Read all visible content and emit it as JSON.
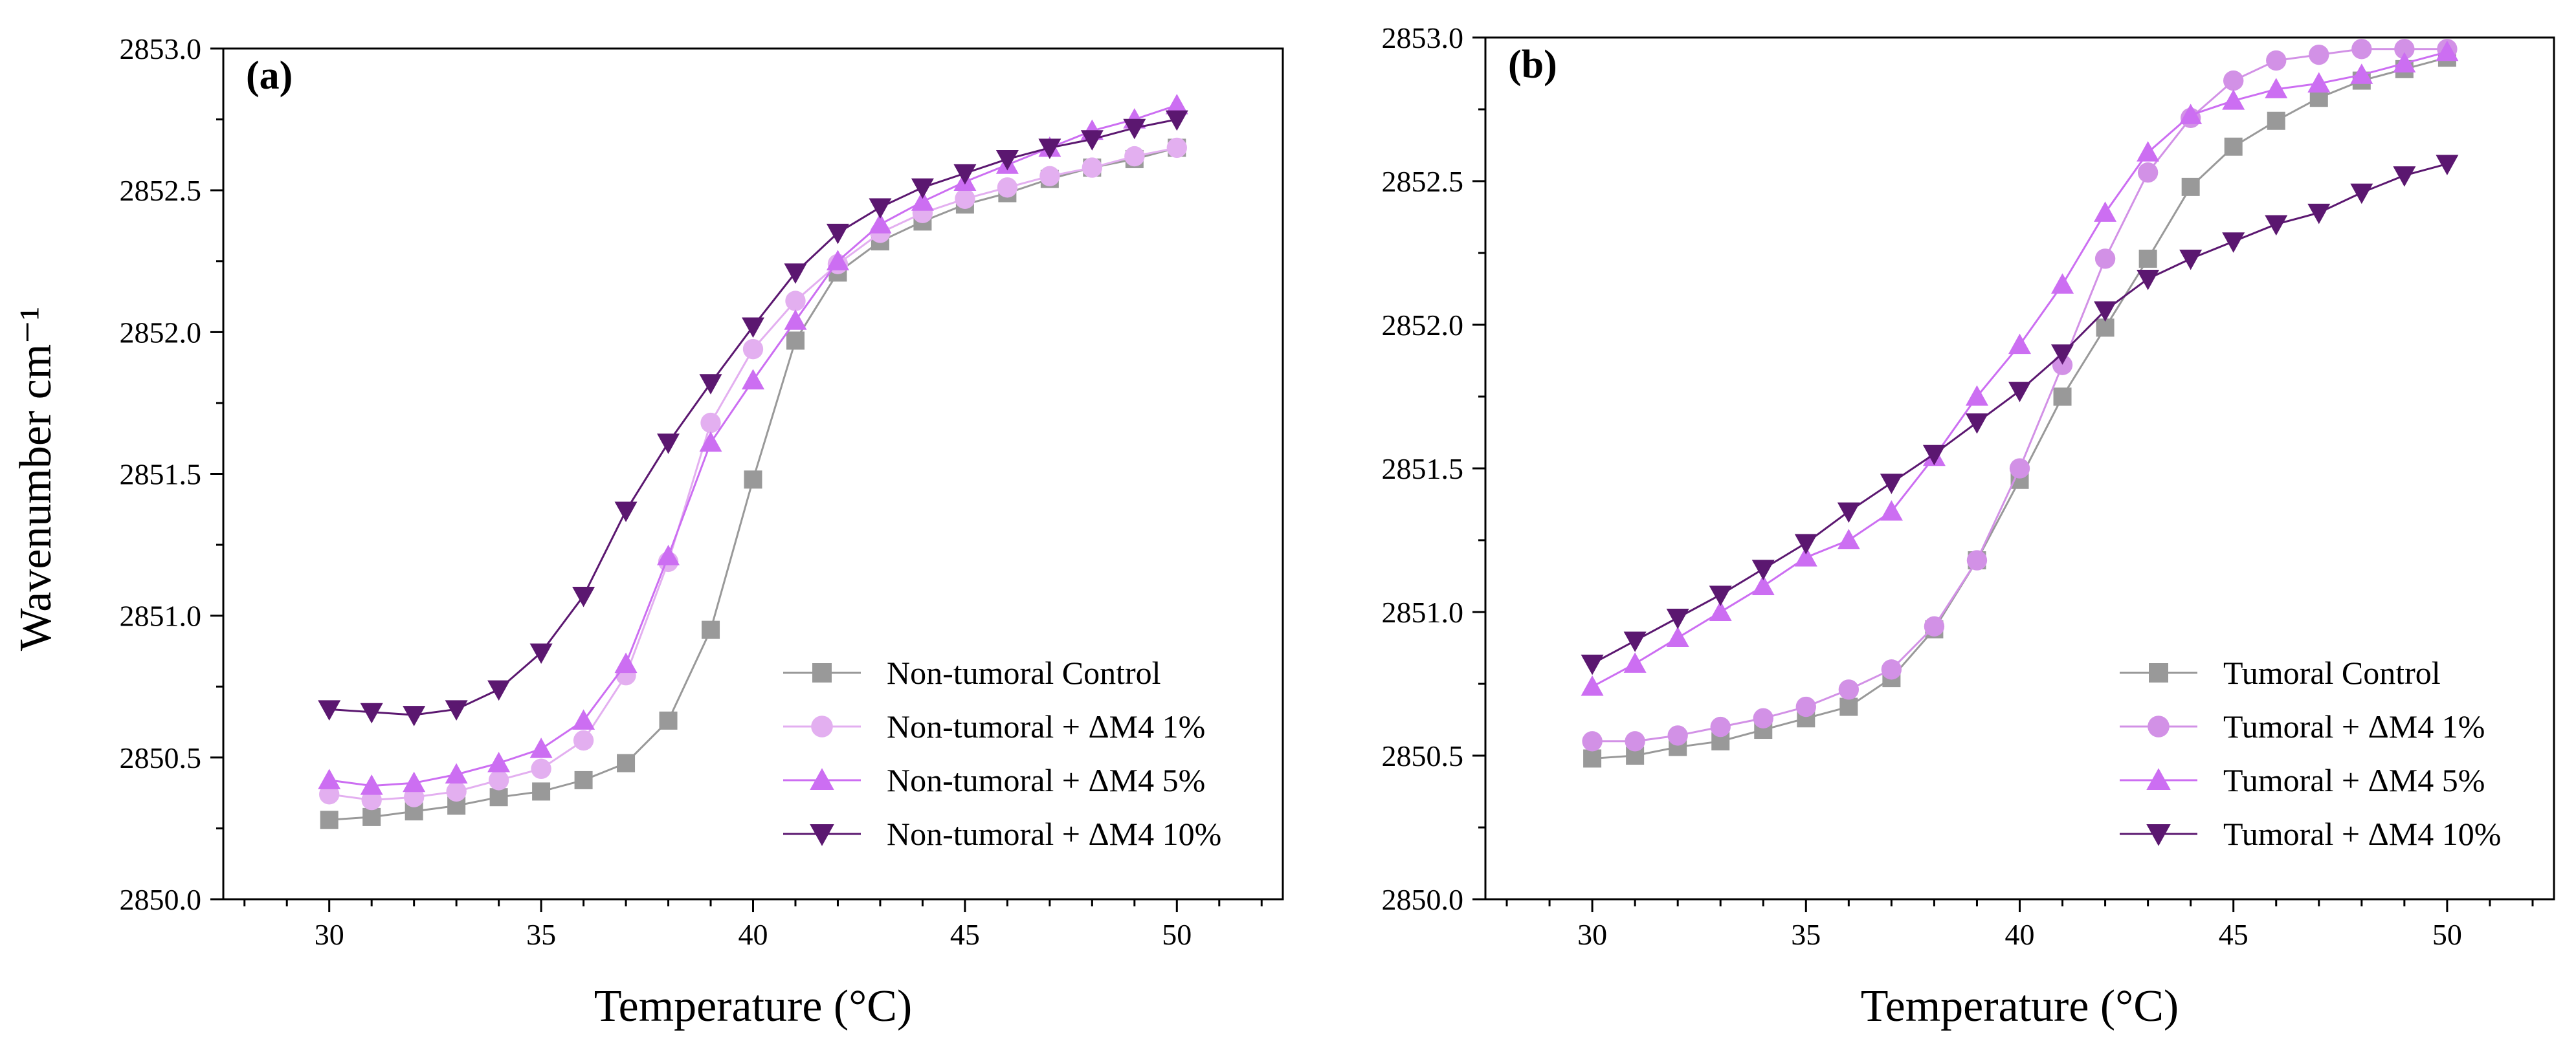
{
  "figure": {
    "ylabel": "Wavenumber cm⁻¹",
    "xlabel": "Temperature (°C)"
  },
  "chart_data": [
    {
      "type": "line",
      "panel_label": "(a)",
      "xlabel": "Temperature (°C)",
      "ylabel": "Wavenumber cm⁻¹",
      "xlim": [
        27.5,
        52.5
      ],
      "ylim": [
        2850.0,
        2853.0
      ],
      "xticks": [
        30,
        35,
        40,
        45,
        50
      ],
      "yticks": [
        2850.0,
        2850.5,
        2851.0,
        2851.5,
        2852.0,
        2852.5,
        2853.0
      ],
      "grid": false,
      "legend_position": "lower-right",
      "x": [
        30,
        31,
        32,
        33,
        34,
        35,
        36,
        37,
        38,
        39,
        40,
        41,
        42,
        43,
        44,
        45,
        46,
        47,
        48,
        49,
        50
      ],
      "series": [
        {
          "name": "Non-tumoral Control",
          "marker": "square",
          "color": "#999999",
          "values": [
            2850.28,
            2850.29,
            2850.31,
            2850.33,
            2850.36,
            2850.38,
            2850.42,
            2850.48,
            2850.63,
            2850.95,
            2851.48,
            2851.97,
            2852.21,
            2852.32,
            2852.39,
            2852.45,
            2852.49,
            2852.54,
            2852.58,
            2852.61,
            2852.65
          ]
        },
        {
          "name": "Non-tumoral + ΔM4 1%",
          "marker": "circle",
          "color": "#e3aff0",
          "values": [
            2850.37,
            2850.35,
            2850.36,
            2850.38,
            2850.42,
            2850.46,
            2850.56,
            2850.79,
            2851.19,
            2851.68,
            2851.94,
            2852.11,
            2852.24,
            2852.35,
            2852.42,
            2852.47,
            2852.51,
            2852.55,
            2852.58,
            2852.62,
            2852.65
          ]
        },
        {
          "name": "Non-tumoral + ΔM4 5%",
          "marker": "triangle-up",
          "color": "#cc6ef2",
          "values": [
            2850.42,
            2850.4,
            2850.41,
            2850.44,
            2850.48,
            2850.53,
            2850.63,
            2850.83,
            2851.21,
            2851.61,
            2851.83,
            2852.04,
            2852.25,
            2852.38,
            2852.46,
            2852.53,
            2852.59,
            2852.65,
            2852.71,
            2852.75,
            2852.8
          ]
        },
        {
          "name": "Non-tumoral + ΔM4 10%",
          "marker": "triangle-down",
          "color": "#5b1770",
          "values": [
            2850.67,
            2850.66,
            2850.65,
            2850.67,
            2850.74,
            2850.87,
            2851.07,
            2851.37,
            2851.61,
            2851.82,
            2852.02,
            2852.21,
            2852.35,
            2852.44,
            2852.51,
            2852.56,
            2852.61,
            2852.65,
            2852.68,
            2852.72,
            2852.75
          ]
        }
      ]
    },
    {
      "type": "line",
      "panel_label": "(b)",
      "xlabel": "Temperature (°C)",
      "ylabel": "",
      "xlim": [
        27.5,
        52.5
      ],
      "ylim": [
        2850.0,
        2853.0
      ],
      "xticks": [
        30,
        35,
        40,
        45,
        50
      ],
      "yticks": [
        2850.0,
        2850.5,
        2851.0,
        2851.5,
        2852.0,
        2852.5,
        2853.0
      ],
      "grid": false,
      "legend_position": "lower-right",
      "x": [
        30,
        31,
        32,
        33,
        34,
        35,
        36,
        37,
        38,
        39,
        40,
        41,
        42,
        43,
        44,
        45,
        46,
        47,
        48,
        49,
        50
      ],
      "series": [
        {
          "name": "Tumoral Control",
          "marker": "square",
          "color": "#999999",
          "values": [
            2850.49,
            2850.5,
            2850.53,
            2850.55,
            2850.59,
            2850.63,
            2850.67,
            2850.77,
            2850.94,
            2851.18,
            2851.46,
            2851.75,
            2851.99,
            2852.23,
            2852.48,
            2852.62,
            2852.71,
            2852.79,
            2852.85,
            2852.89,
            2852.93
          ]
        },
        {
          "name": "Tumoral + ΔM4 1%",
          "marker": "circle",
          "color": "#d291e6",
          "values": [
            2850.55,
            2850.55,
            2850.57,
            2850.6,
            2850.63,
            2850.67,
            2850.73,
            2850.8,
            2850.95,
            2851.18,
            2851.5,
            2851.86,
            2852.23,
            2852.53,
            2852.72,
            2852.85,
            2852.92,
            2852.94,
            2852.96,
            2852.96,
            2852.96
          ]
        },
        {
          "name": "Tumoral + ΔM4 5%",
          "marker": "triangle-up",
          "color": "#cc6ef2",
          "values": [
            2850.74,
            2850.82,
            2850.91,
            2851.0,
            2851.09,
            2851.19,
            2851.25,
            2851.35,
            2851.54,
            2851.75,
            2851.93,
            2852.14,
            2852.39,
            2852.6,
            2852.73,
            2852.78,
            2852.82,
            2852.84,
            2852.87,
            2852.91,
            2852.95
          ]
        },
        {
          "name": "Tumoral + ΔM4 10%",
          "marker": "triangle-down",
          "color": "#5b1770",
          "values": [
            2850.82,
            2850.9,
            2850.98,
            2851.06,
            2851.15,
            2851.24,
            2851.35,
            2851.45,
            2851.55,
            2851.66,
            2851.77,
            2851.9,
            2852.05,
            2852.16,
            2852.23,
            2852.29,
            2852.35,
            2852.39,
            2852.46,
            2852.52,
            2852.56
          ]
        }
      ]
    }
  ]
}
